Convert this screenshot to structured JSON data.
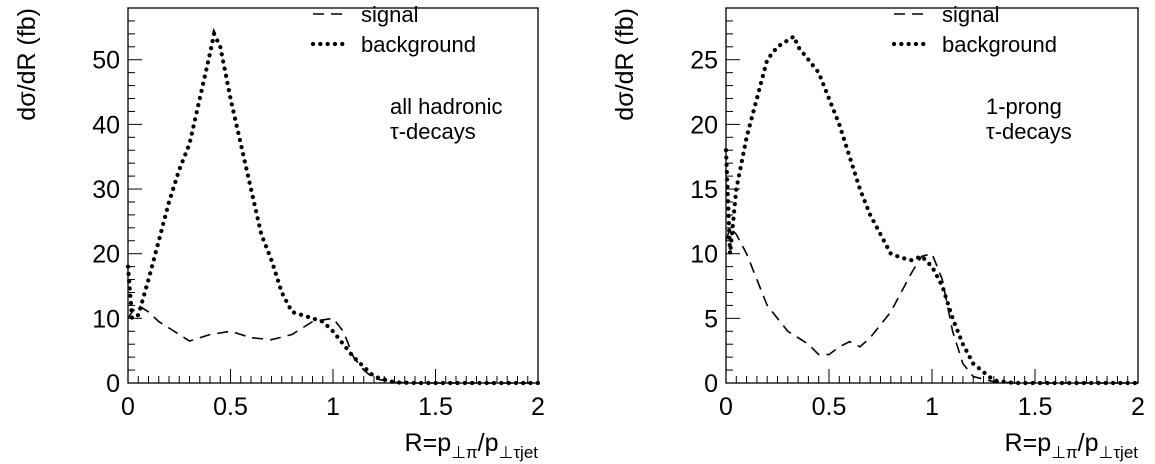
{
  "chart_data": [
    {
      "type": "line",
      "title": "",
      "xlabel": {
        "base": "R=p",
        "sub1": "⊥π",
        "mid": "/p",
        "sub2": "⊥τjet"
      },
      "ylabel": "dσ/dR (fb)",
      "xlim": [
        0,
        2
      ],
      "ylim": [
        0,
        58
      ],
      "xticks": [
        0,
        0.5,
        1,
        1.5,
        2
      ],
      "xtick_labels": [
        "0",
        "0.5",
        "1",
        "1.5",
        "2"
      ],
      "yticks": [
        0,
        10,
        20,
        30,
        40,
        50
      ],
      "ytick_labels": [
        "0",
        "10",
        "20",
        "30",
        "40",
        "50"
      ],
      "grid": false,
      "legend_position": "top-right",
      "annotation": [
        "all hadronic",
        "τ-decays"
      ],
      "series": [
        {
          "name": "signal",
          "style": "dashed",
          "x": [
            0.0,
            0.02,
            0.05,
            0.1,
            0.15,
            0.2,
            0.3,
            0.4,
            0.5,
            0.6,
            0.7,
            0.8,
            0.9,
            1.0,
            1.05,
            1.1,
            1.15,
            1.2,
            1.3,
            1.4,
            1.5,
            1.6,
            1.7,
            1.8,
            1.9,
            2.0
          ],
          "y": [
            10,
            11,
            12,
            11,
            9.5,
            8.5,
            6.5,
            7.5,
            8,
            7,
            6.7,
            7.5,
            9.5,
            10,
            8,
            4,
            2,
            0.7,
            0.1,
            0,
            0,
            0,
            0,
            0,
            0,
            0
          ]
        },
        {
          "name": "background",
          "style": "dotted",
          "x": [
            0.0,
            0.02,
            0.05,
            0.1,
            0.15,
            0.2,
            0.25,
            0.3,
            0.35,
            0.4,
            0.42,
            0.45,
            0.5,
            0.55,
            0.6,
            0.65,
            0.7,
            0.75,
            0.8,
            0.85,
            0.9,
            0.95,
            1.0,
            1.05,
            1.1,
            1.15,
            1.2,
            1.3,
            1.4,
            1.5,
            1.6,
            1.7,
            1.8,
            1.9,
            2.0
          ],
          "y": [
            18,
            10,
            10.5,
            16,
            22,
            28,
            33,
            37,
            44,
            51,
            54,
            52,
            44,
            37,
            30,
            23,
            19,
            14,
            11,
            10.5,
            10,
            9.5,
            8,
            6,
            4,
            2.5,
            1,
            0.1,
            0,
            0,
            0,
            0,
            0,
            0,
            0
          ]
        }
      ]
    },
    {
      "type": "line",
      "title": "",
      "xlabel": {
        "base": "R=p",
        "sub1": "⊥π",
        "mid": "/p",
        "sub2": "⊥τjet"
      },
      "ylabel": "dσ/dR (fb)",
      "xlim": [
        0,
        2
      ],
      "ylim": [
        0,
        29
      ],
      "xticks": [
        0,
        0.5,
        1,
        1.5,
        2
      ],
      "xtick_labels": [
        "0",
        "0.5",
        "1",
        "1.5",
        "2"
      ],
      "yticks": [
        0,
        5,
        10,
        15,
        20,
        25
      ],
      "ytick_labels": [
        "0",
        "5",
        "10",
        "15",
        "20",
        "25"
      ],
      "grid": false,
      "legend_position": "top-right",
      "annotation": [
        "1-prong",
        "τ-decays"
      ],
      "series": [
        {
          "name": "signal",
          "style": "dashed",
          "x": [
            0.0,
            0.02,
            0.05,
            0.1,
            0.15,
            0.2,
            0.3,
            0.4,
            0.45,
            0.5,
            0.55,
            0.6,
            0.65,
            0.7,
            0.8,
            0.9,
            0.95,
            1.0,
            1.05,
            1.1,
            1.15,
            1.2,
            1.3,
            1.4,
            1.5,
            1.6,
            1.7,
            1.8,
            1.9,
            2.0
          ],
          "y": [
            11,
            12,
            11.5,
            10,
            8,
            6,
            4,
            3,
            2.2,
            2.2,
            2.8,
            3.2,
            2.8,
            3.5,
            5.5,
            8.5,
            9.8,
            10,
            8,
            4,
            1.5,
            0.5,
            0.1,
            0,
            0,
            0,
            0,
            0,
            0,
            0
          ]
        },
        {
          "name": "background",
          "style": "dotted",
          "x": [
            0.0,
            0.02,
            0.05,
            0.1,
            0.15,
            0.2,
            0.25,
            0.3,
            0.33,
            0.35,
            0.4,
            0.45,
            0.5,
            0.55,
            0.6,
            0.65,
            0.7,
            0.75,
            0.8,
            0.85,
            0.9,
            0.95,
            1.0,
            1.05,
            1.1,
            1.15,
            1.2,
            1.3,
            1.4,
            1.5,
            1.6,
            1.7,
            1.8,
            1.9,
            2.0
          ],
          "y": [
            18,
            10,
            15,
            19,
            22,
            25,
            26,
            26.5,
            26.8,
            26,
            25,
            24,
            22,
            20,
            17.5,
            15,
            13,
            11.5,
            10,
            9.7,
            9.5,
            9.8,
            9,
            7.5,
            5,
            3,
            1.5,
            0.2,
            0,
            0,
            0,
            0,
            0,
            0,
            0
          ]
        }
      ]
    }
  ]
}
